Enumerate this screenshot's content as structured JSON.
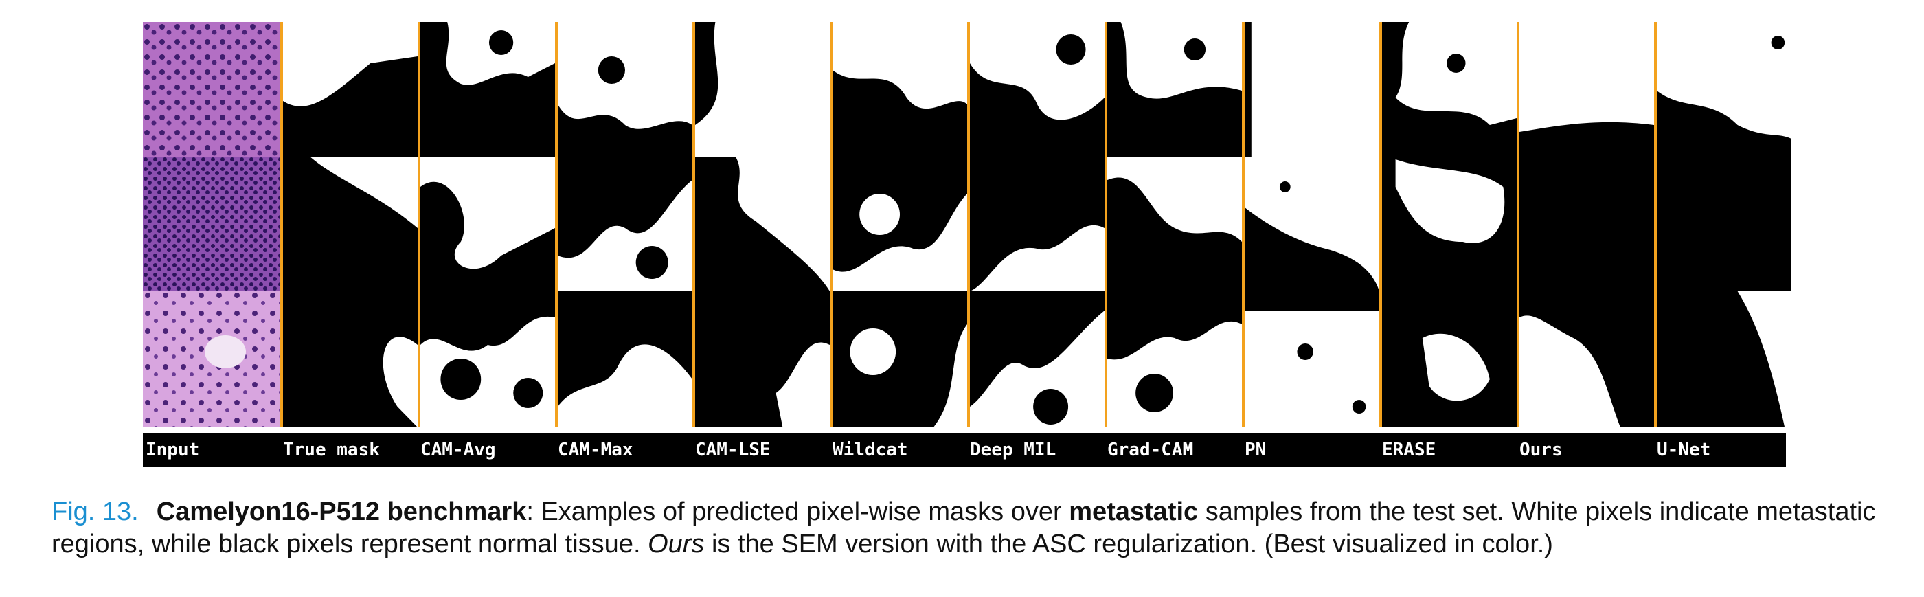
{
  "figure": {
    "columns": [
      {
        "label": "Input"
      },
      {
        "label": "True mask"
      },
      {
        "label": "CAM-Avg"
      },
      {
        "label": "CAM-Max"
      },
      {
        "label": "CAM-LSE"
      },
      {
        "label": "Wildcat"
      },
      {
        "label": "Deep MIL"
      },
      {
        "label": "Grad-CAM"
      },
      {
        "label": "PN"
      },
      {
        "label": "ERASE"
      },
      {
        "label": "Ours"
      },
      {
        "label": "U-Net"
      }
    ],
    "colors": {
      "separator": "#f3a21e",
      "tissue_dark": "#5b2d8a",
      "tissue_light": "#c98bd4",
      "mask_white": "#ffffff",
      "mask_black": "#000000"
    }
  },
  "caption": {
    "fig_number": "Fig. 13.",
    "bold_title": "Camelyon16-P512 benchmark",
    "text_part1": ": Examples of predicted pixel-wise masks over ",
    "bold_word": "metastatic",
    "text_part2": " samples from the test set. White pixels indicate metastatic regions, while black pixels represent normal tissue. ",
    "italic_word": "Ours",
    "text_part3": " is the SEM version with the ASC regularization. (Best visualized in color.)"
  }
}
